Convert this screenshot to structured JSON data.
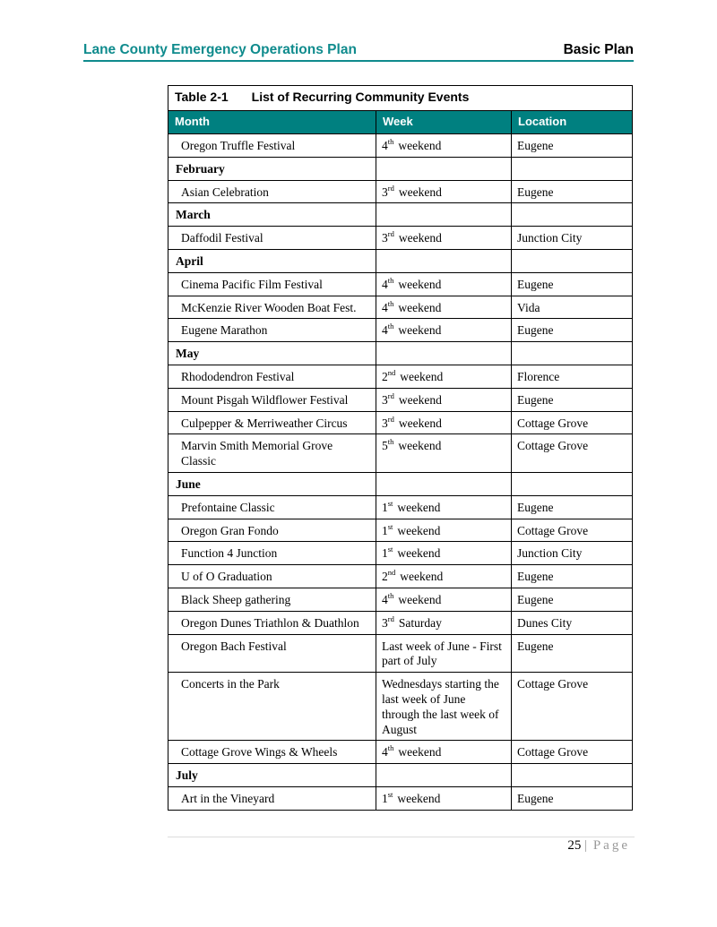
{
  "header": {
    "left": "Lane County Emergency Operations Plan",
    "right": "Basic Plan"
  },
  "table": {
    "number": "Table 2-1",
    "title": "List of Recurring Community Events",
    "columns": [
      "Month",
      "Week",
      "Location"
    ],
    "rows": [
      {
        "event": "Oregon Truffle Festival",
        "week_num": "4",
        "week_sup": "th",
        "week_text": "weekend",
        "location": "Eugene"
      },
      {
        "month": "February"
      },
      {
        "event": "Asian Celebration",
        "week_num": "3",
        "week_sup": "rd",
        "week_text": "weekend",
        "location": "Eugene"
      },
      {
        "month": "March"
      },
      {
        "event": "Daffodil Festival",
        "week_num": "3",
        "week_sup": "rd",
        "week_text": "weekend",
        "location": "Junction City"
      },
      {
        "month": "April"
      },
      {
        "event": "Cinema Pacific Film Festival",
        "week_num": "4",
        "week_sup": "th",
        "week_text": "weekend",
        "location": "Eugene"
      },
      {
        "event": "McKenzie River Wooden Boat Fest.",
        "week_num": "4",
        "week_sup": "th",
        "week_text": "weekend",
        "location": "Vida"
      },
      {
        "event": "Eugene Marathon",
        "week_num": "4",
        "week_sup": "th",
        "week_text": "weekend",
        "location": "Eugene"
      },
      {
        "month": "May"
      },
      {
        "event": "Rhododendron Festival",
        "week_num": "2",
        "week_sup": "nd",
        "week_text": "weekend",
        "location": "Florence"
      },
      {
        "event": "Mount Pisgah Wildflower Festival",
        "week_num": "3",
        "week_sup": "rd",
        "week_text": "weekend",
        "location": "Eugene"
      },
      {
        "event": "Culpepper & Merriweather Circus",
        "week_num": "3",
        "week_sup": "rd",
        "week_text": "weekend",
        "location": "Cottage Grove"
      },
      {
        "event": "Marvin Smith Memorial Grove Classic",
        "week_num": "5",
        "week_sup": "th",
        "week_text": "weekend",
        "location": "Cottage Grove"
      },
      {
        "month": "June"
      },
      {
        "event": "Prefontaine Classic",
        "week_num": "1",
        "week_sup": "st",
        "week_text": "weekend",
        "location": "Eugene"
      },
      {
        "event": "Oregon Gran Fondo",
        "week_num": "1",
        "week_sup": "st",
        "week_text": "weekend",
        "location": "Cottage Grove"
      },
      {
        "event": "Function 4 Junction",
        "week_num": "1",
        "week_sup": "st",
        "week_text": "weekend",
        "location": "Junction City"
      },
      {
        "event": "U of O Graduation",
        "week_num": "2",
        "week_sup": "nd",
        "week_text": "weekend",
        "location": "Eugene"
      },
      {
        "event": "Black Sheep gathering",
        "week_num": "4",
        "week_sup": "th",
        "week_text": "weekend",
        "location": "Eugene"
      },
      {
        "event": "Oregon Dunes Triathlon & Duathlon",
        "week_num": "3",
        "week_sup": "rd",
        "week_text": "Saturday",
        "location": "Dunes City"
      },
      {
        "event": "Oregon Bach Festival",
        "week_text": "Last week of June - First part of July",
        "location": "Eugene"
      },
      {
        "event": "Concerts in the Park",
        "week_text": "Wednesdays starting the last week of June through the last week of August",
        "location": "Cottage Grove"
      },
      {
        "event": "Cottage Grove Wings & Wheels",
        "week_num": "4",
        "week_sup": "th",
        "week_text": "weekend",
        "location": "Cottage Grove"
      },
      {
        "month": "July"
      },
      {
        "event": "Art in the Vineyard",
        "week_num": "1",
        "week_sup": "st",
        "week_text": "weekend",
        "location": "Eugene"
      }
    ]
  },
  "footer": {
    "page_number": "25",
    "separator": "|",
    "page_label": "Page"
  }
}
